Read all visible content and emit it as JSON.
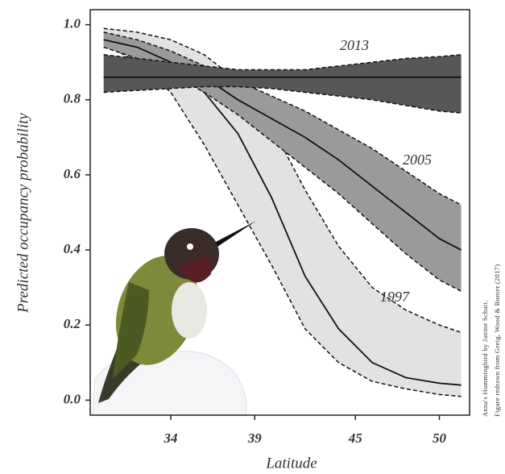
{
  "chart_data": {
    "type": "line",
    "x_label": "Latitude",
    "y_label": "Predicted occupancy probability",
    "x": [
      30,
      32,
      34,
      36,
      38,
      40,
      42,
      44,
      46,
      48,
      50,
      51.3
    ],
    "xlim": [
      29.2,
      51.8
    ],
    "xticks": [
      34,
      39,
      45,
      50
    ],
    "ylim": [
      -0.04,
      1.04
    ],
    "yticks": [
      {
        "value": 0,
        "label": "0.0"
      },
      0.2,
      0.4,
      0.6,
      0.8,
      {
        "value": 1,
        "label": "1.0"
      }
    ],
    "series": [
      {
        "name": "1997",
        "color": "#e2e2e2",
        "values": [
          0.96,
          0.93,
          0.89,
          0.82,
          0.71,
          0.54,
          0.33,
          0.19,
          0.1,
          0.06,
          0.045,
          0.04
        ],
        "upper": [
          0.99,
          0.98,
          0.96,
          0.92,
          0.85,
          0.73,
          0.56,
          0.41,
          0.3,
          0.24,
          0.2,
          0.18
        ],
        "lower": [
          0.95,
          0.9,
          0.82,
          0.68,
          0.52,
          0.36,
          0.19,
          0.1,
          0.05,
          0.03,
          0.015,
          0.01
        ]
      },
      {
        "name": "2005",
        "color": "#9a9a9a",
        "values": [
          0.96,
          0.94,
          0.9,
          0.86,
          0.8,
          0.75,
          0.7,
          0.64,
          0.57,
          0.5,
          0.43,
          0.4
        ],
        "upper": [
          0.98,
          0.96,
          0.93,
          0.89,
          0.85,
          0.81,
          0.77,
          0.72,
          0.67,
          0.61,
          0.55,
          0.52
        ],
        "lower": [
          0.94,
          0.91,
          0.87,
          0.82,
          0.76,
          0.69,
          0.62,
          0.55,
          0.47,
          0.39,
          0.32,
          0.29
        ]
      },
      {
        "name": "2013",
        "color": "#575757",
        "values": [
          0.86,
          0.86,
          0.86,
          0.86,
          0.86,
          0.86,
          0.86,
          0.86,
          0.86,
          0.86,
          0.86,
          0.86
        ],
        "upper": [
          0.92,
          0.91,
          0.9,
          0.89,
          0.88,
          0.88,
          0.88,
          0.89,
          0.9,
          0.91,
          0.915,
          0.92
        ],
        "lower": [
          0.82,
          0.825,
          0.83,
          0.835,
          0.835,
          0.83,
          0.82,
          0.81,
          0.8,
          0.785,
          0.77,
          0.765
        ]
      }
    ],
    "credits": [
      "Anna's Hummingbird by Janine Schutt.",
      "Figure redrawn from Greig, Wood & Bonter (2017)"
    ]
  }
}
